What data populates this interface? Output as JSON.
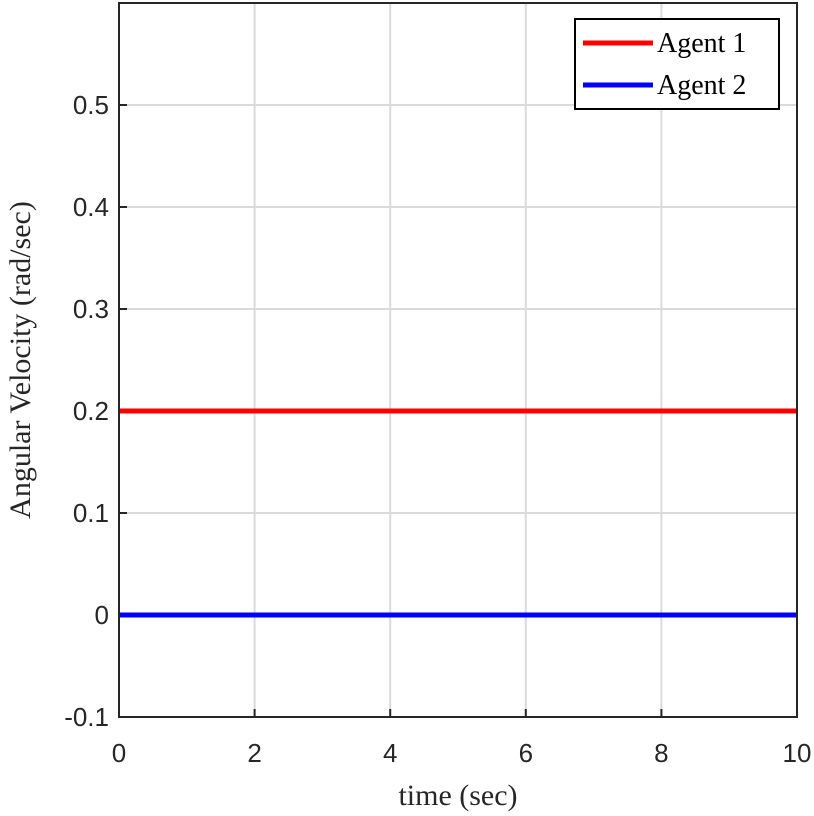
{
  "chart_data": {
    "type": "line",
    "x_label": "time (sec)",
    "y_label": "Angular Velocity (rad/sec)",
    "x": [
      0,
      10
    ],
    "series": [
      {
        "name": "Agent 1",
        "color": "#ff0000",
        "values": [
          0.2,
          0.2
        ]
      },
      {
        "name": "Agent 2",
        "color": "#0000ff",
        "values": [
          0,
          0
        ]
      }
    ],
    "xlim": [
      0,
      10
    ],
    "xticks": [
      0,
      2,
      4,
      6,
      8,
      10
    ],
    "ylim": [
      -0.1,
      0.6
    ],
    "yticks": [
      -0.1,
      0,
      0.1,
      0.2,
      0.3,
      0.4,
      0.5
    ],
    "grid": true,
    "legend": "northeast"
  }
}
